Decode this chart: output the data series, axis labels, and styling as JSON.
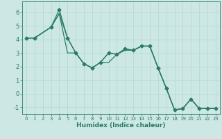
{
  "title": "",
  "xlabel": "Humidex (Indice chaleur)",
  "ylabel": "",
  "xlim": [
    -0.5,
    23.5
  ],
  "ylim": [
    -1.5,
    6.8
  ],
  "xticks": [
    0,
    1,
    2,
    3,
    4,
    5,
    6,
    7,
    8,
    9,
    10,
    11,
    12,
    13,
    14,
    15,
    16,
    17,
    18,
    19,
    20,
    21,
    22,
    23
  ],
  "yticks": [
    -1,
    0,
    1,
    2,
    3,
    4,
    5,
    6
  ],
  "background_color": "#cde8e4",
  "grid_color": "#b0d8d0",
  "line_color": "#2a7a6a",
  "line1_x": [
    0,
    1,
    3,
    4,
    5,
    6,
    7,
    8,
    9,
    10,
    11,
    12,
    13,
    14,
    15,
    16,
    17,
    18,
    19,
    20,
    21,
    22,
    23
  ],
  "line1_y": [
    4.1,
    4.1,
    4.9,
    6.2,
    4.1,
    3.0,
    2.2,
    1.9,
    2.3,
    3.0,
    2.9,
    3.3,
    3.2,
    3.5,
    3.5,
    1.9,
    0.4,
    -1.2,
    -1.1,
    -0.4,
    -1.1,
    -1.1,
    -1.1
  ],
  "line2_x": [
    0,
    1,
    3,
    4,
    5,
    6,
    7,
    8,
    9,
    10,
    11,
    12,
    13,
    14,
    15,
    16,
    17,
    18,
    19,
    20,
    21,
    22,
    23
  ],
  "line2_y": [
    4.1,
    4.1,
    4.9,
    5.9,
    4.1,
    3.0,
    2.2,
    1.9,
    2.3,
    3.0,
    2.9,
    3.3,
    3.2,
    3.5,
    3.5,
    1.9,
    0.4,
    -1.2,
    -1.1,
    -0.4,
    -1.1,
    -1.1,
    -1.1
  ],
  "line3_x": [
    0,
    1,
    3,
    4,
    5,
    6,
    7,
    8,
    9,
    10,
    11,
    12,
    13,
    14,
    15,
    16,
    17,
    18,
    19,
    20,
    21,
    22,
    23
  ],
  "line3_y": [
    4.1,
    4.1,
    4.9,
    5.9,
    3.0,
    3.0,
    2.2,
    1.9,
    2.3,
    2.3,
    2.9,
    3.2,
    3.2,
    3.5,
    3.5,
    1.9,
    0.4,
    -1.2,
    -1.1,
    -0.4,
    -1.1,
    -1.1,
    -1.1
  ],
  "marker_x": [
    0,
    1,
    3,
    4,
    5,
    6,
    7,
    8,
    9,
    10,
    11,
    12,
    13,
    14,
    15,
    16,
    17,
    18,
    19,
    20,
    21,
    22,
    23
  ],
  "marker_y": [
    4.1,
    4.1,
    4.9,
    6.2,
    4.1,
    3.0,
    2.2,
    1.9,
    2.3,
    3.0,
    2.9,
    3.3,
    3.2,
    3.5,
    3.5,
    1.9,
    0.4,
    -1.2,
    -1.1,
    -0.4,
    -1.1,
    -1.1,
    -1.1
  ]
}
